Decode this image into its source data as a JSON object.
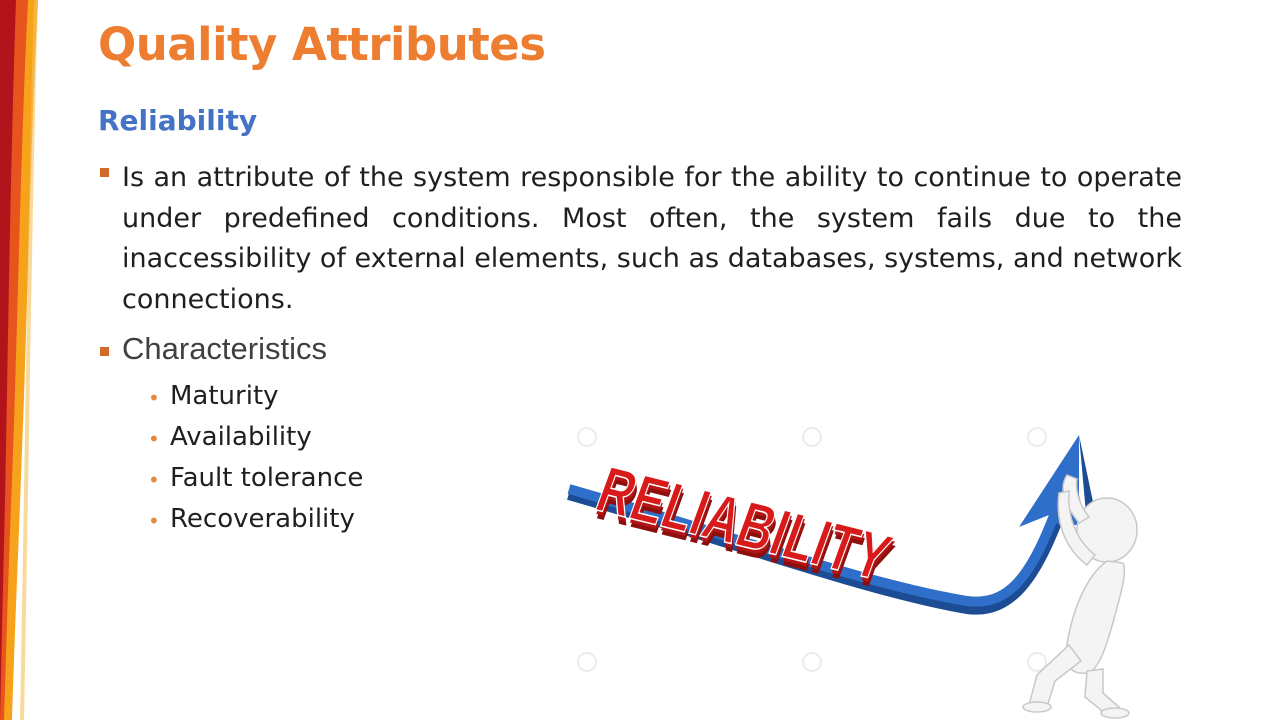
{
  "slide": {
    "title": "Quality Attributes",
    "subtitle": "Reliability",
    "bullets": [
      "Is an attribute of the system responsible for the ability to continue to operate under predefined conditions. Most often, the system fails due to the inaccessibility of external elements, such as databases, systems, and network connections.",
      "Characteristics"
    ],
    "characteristics": [
      "Maturity",
      "Availability",
      "Fault tolerance",
      "Recoverability"
    ],
    "illustration": {
      "word": "RELIABILITY",
      "icon": "person-pushing-arrow-icon"
    }
  },
  "colors": {
    "title": "#ED7D31",
    "subtitle": "#4472C4",
    "bullet_square": "#D36A2A",
    "sub_bullet": "#E8883A",
    "letter_red": "#D91A1A",
    "arrow_blue": "#2F6FC9"
  }
}
